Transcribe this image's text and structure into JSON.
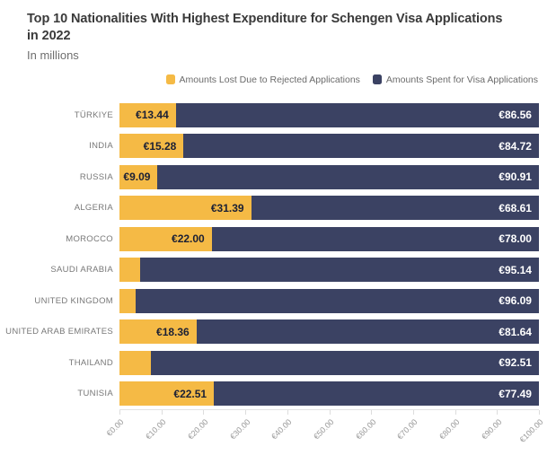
{
  "header": {
    "title_lines": [
      "Top 10 Nationalities With Highest Expenditure for Schengen Visa Applications",
      "in 2022"
    ],
    "subtitle": "In millions"
  },
  "legend": {
    "items": [
      {
        "label": "Amounts Lost Due to Rejected Applications",
        "color": "#f5ba45"
      },
      {
        "label": "Amounts Spent for Visa Applications",
        "color": "#3b4263"
      }
    ]
  },
  "chart_data": {
    "type": "bar",
    "orientation": "horizontal",
    "stacked": true,
    "title": "Top 10 Nationalities With Highest Expenditure for Schengen Visa Applications in 2022",
    "subtitle": "In millions",
    "unit": "€ millions",
    "categories": [
      "TÜRKIYE",
      "INDIA",
      "RUSSIA",
      "ALGERIA",
      "MOROCCO",
      "SAUDI ARABIA",
      "UNITED KINGDOM",
      "UNITED ARAB EMIRATES",
      "THAILAND",
      "TUNISIA"
    ],
    "series": [
      {
        "name": "Amounts Lost Due to Rejected Applications",
        "color": "#f5ba45",
        "values": [
          13.44,
          15.28,
          9.09,
          31.39,
          22.0,
          4.86,
          3.91,
          18.36,
          7.49,
          22.51
        ],
        "labels": [
          "€13.44",
          "€15.28",
          "€9.09",
          "€31.39",
          "€22.00",
          "",
          "",
          "€18.36",
          "",
          "€22.51"
        ]
      },
      {
        "name": "Amounts Spent for Visa Applications",
        "color": "#3b4263",
        "values": [
          86.56,
          84.72,
          90.91,
          68.61,
          78.0,
          95.14,
          96.09,
          81.64,
          92.51,
          77.49
        ],
        "labels": [
          "€86.56",
          "€84.72",
          "€90.91",
          "€68.61",
          "€78.00",
          "€95.14",
          "€96.09",
          "€81.64",
          "€92.51",
          "€77.49"
        ]
      }
    ],
    "xlim": [
      0,
      100
    ],
    "x_ticks": [
      "€0.00",
      "€10.00",
      "€20.00",
      "€30.00",
      "€40.00",
      "€50.00",
      "€60.00",
      "€70.00",
      "€80.00",
      "€90.00",
      "€100.00"
    ],
    "grid": false,
    "legend_position": "top-right"
  }
}
